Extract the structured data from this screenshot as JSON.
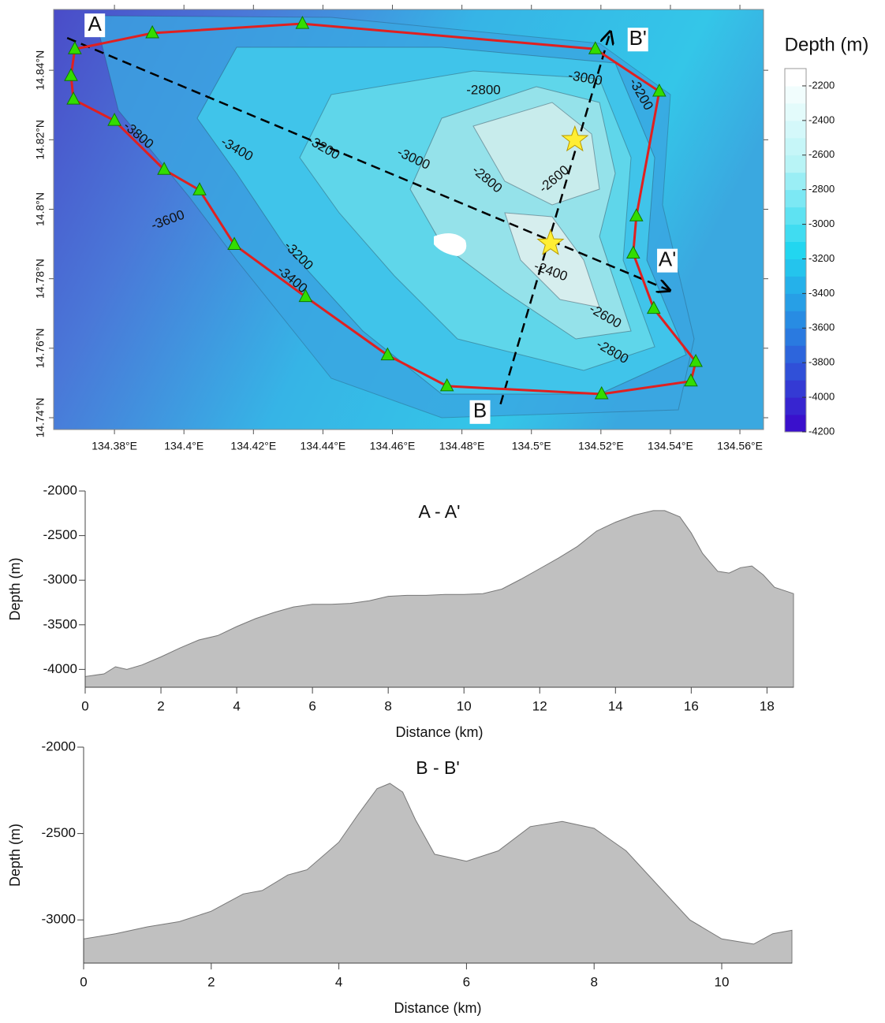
{
  "chart_data": [
    {
      "type": "map",
      "xlim": [
        134.3625,
        134.5668
      ],
      "ylim": [
        14.7366,
        14.8575
      ],
      "xticks": [
        {
          "value": 134.38,
          "label": "134.38°E"
        },
        {
          "value": 134.4,
          "label": "134.4°E"
        },
        {
          "value": 134.42,
          "label": "134.42°E"
        },
        {
          "value": 134.44,
          "label": "134.44°E"
        },
        {
          "value": 134.46,
          "label": "134.46°E"
        },
        {
          "value": 134.48,
          "label": "134.48°E"
        },
        {
          "value": 134.5,
          "label": "134.5°E"
        },
        {
          "value": 134.52,
          "label": "134.52°E"
        },
        {
          "value": 134.54,
          "label": "134.54°E"
        },
        {
          "value": 134.56,
          "label": "134.56°E"
        }
      ],
      "yticks": [
        {
          "value": 14.74,
          "label": "14.74°N"
        },
        {
          "value": 14.76,
          "label": "14.76°N"
        },
        {
          "value": 14.78,
          "label": "14.78°N"
        },
        {
          "value": 14.8,
          "label": "14.8°N"
        },
        {
          "value": 14.82,
          "label": "14.82°N"
        },
        {
          "value": 14.84,
          "label": "14.84°N"
        }
      ],
      "route_color": "#e02020",
      "stations": {
        "color": "#33dd00",
        "lon": [
          134.3686,
          134.3675,
          134.3682,
          134.38,
          134.3943,
          134.4045,
          134.4145,
          134.435,
          134.4586,
          134.4757,
          134.5202,
          134.5459,
          134.5473,
          134.5352,
          134.5293,
          134.5302,
          134.5368,
          134.5184,
          134.4341,
          134.3909
        ],
        "lat": [
          14.8461,
          14.8384,
          14.8316,
          14.8255,
          14.8114,
          14.8055,
          14.7898,
          14.7748,
          14.758,
          14.7491,
          14.7468,
          14.7505,
          14.7561,
          14.7714,
          14.7873,
          14.798,
          14.8339,
          14.8461,
          14.8534,
          14.8507
        ]
      },
      "stars": {
        "color": "#ffee33",
        "lon": [
          134.5125,
          134.5055
        ],
        "lat": [
          14.82,
          14.7902
        ]
      },
      "profiles": [
        {
          "start_label": "A",
          "end_label": "A'",
          "lon": [
            134.3664,
            134.5398
          ],
          "lat": [
            14.8493,
            14.7766
          ]
        },
        {
          "start_label": "B",
          "end_label": "B'",
          "lon": [
            134.4911,
            134.5227
          ],
          "lat": [
            14.7439,
            14.8511
          ]
        }
      ],
      "contour_labels": [
        -2800,
        -3000,
        -3200,
        -3800,
        -3400,
        -3200,
        -3000,
        -2800,
        -2600,
        -3600,
        -3200,
        -3400,
        -2400,
        -2600,
        -2800
      ],
      "colorbar": {
        "title": "Depth (m)",
        "lim": [
          -4200,
          -2100
        ],
        "ticks": [
          -2200,
          -2400,
          -2600,
          -2800,
          -3000,
          -3200,
          -3400,
          -3600,
          -3800,
          -4000,
          -4200
        ],
        "colors": [
          "#3a10cc",
          "#2a7ae0",
          "#22d6f0",
          "#b8f4f6",
          "#ffffff"
        ]
      }
    },
    {
      "type": "area",
      "title": "A - A'",
      "x_label": "Distance (km)",
      "y_label": "Depth (m)",
      "color": "#c0c0c0",
      "xlim": [
        0,
        18.7
      ],
      "ylim": [
        -4200,
        -2000
      ],
      "xticks": [
        0,
        2,
        4,
        6,
        8,
        10,
        12,
        14,
        16,
        18
      ],
      "yticks": [
        -2000,
        -2500,
        -3000,
        -3500,
        -4000
      ],
      "x": [
        0,
        0.5,
        0.8,
        1.1,
        1.5,
        2,
        2.5,
        3,
        3.5,
        4,
        4.5,
        5,
        5.5,
        6,
        6.5,
        7,
        7.5,
        8,
        8.5,
        9,
        9.5,
        10,
        10.5,
        11,
        11.5,
        12,
        12.5,
        13,
        13.5,
        14,
        14.5,
        15,
        15.3,
        15.7,
        16,
        16.3,
        16.7,
        17,
        17.3,
        17.6,
        17.9,
        18.2,
        18.7
      ],
      "values": [
        -4080,
        -4050,
        -3970,
        -4000,
        -3950,
        -3860,
        -3760,
        -3670,
        -3620,
        -3520,
        -3430,
        -3360,
        -3300,
        -3270,
        -3270,
        -3260,
        -3230,
        -3180,
        -3170,
        -3170,
        -3160,
        -3160,
        -3150,
        -3100,
        -2990,
        -2870,
        -2750,
        -2620,
        -2450,
        -2350,
        -2270,
        -2220,
        -2220,
        -2290,
        -2470,
        -2700,
        -2900,
        -2920,
        -2860,
        -2840,
        -2940,
        -3080,
        -3150
      ]
    },
    {
      "type": "area",
      "title": "B - B'",
      "x_label": "Distance (km)",
      "y_label": "Depth (m)",
      "color": "#c0c0c0",
      "xlim": [
        0,
        11.1
      ],
      "ylim": [
        -3250,
        -2000
      ],
      "xticks": [
        0,
        2,
        4,
        6,
        8,
        10
      ],
      "yticks": [
        -2000,
        -2500,
        -3000
      ],
      "x": [
        0,
        0.5,
        1,
        1.5,
        2,
        2.5,
        2.8,
        3.2,
        3.5,
        4,
        4.3,
        4.6,
        4.8,
        5,
        5.2,
        5.5,
        6,
        6.5,
        7,
        7.5,
        8,
        8.5,
        9,
        9.5,
        10,
        10.5,
        10.8,
        11.1
      ],
      "values": [
        -3110,
        -3080,
        -3040,
        -3010,
        -2950,
        -2850,
        -2830,
        -2740,
        -2710,
        -2550,
        -2390,
        -2240,
        -2210,
        -2260,
        -2420,
        -2620,
        -2660,
        -2600,
        -2460,
        -2430,
        -2470,
        -2600,
        -2800,
        -3000,
        -3110,
        -3140,
        -3080,
        -3060
      ]
    }
  ]
}
